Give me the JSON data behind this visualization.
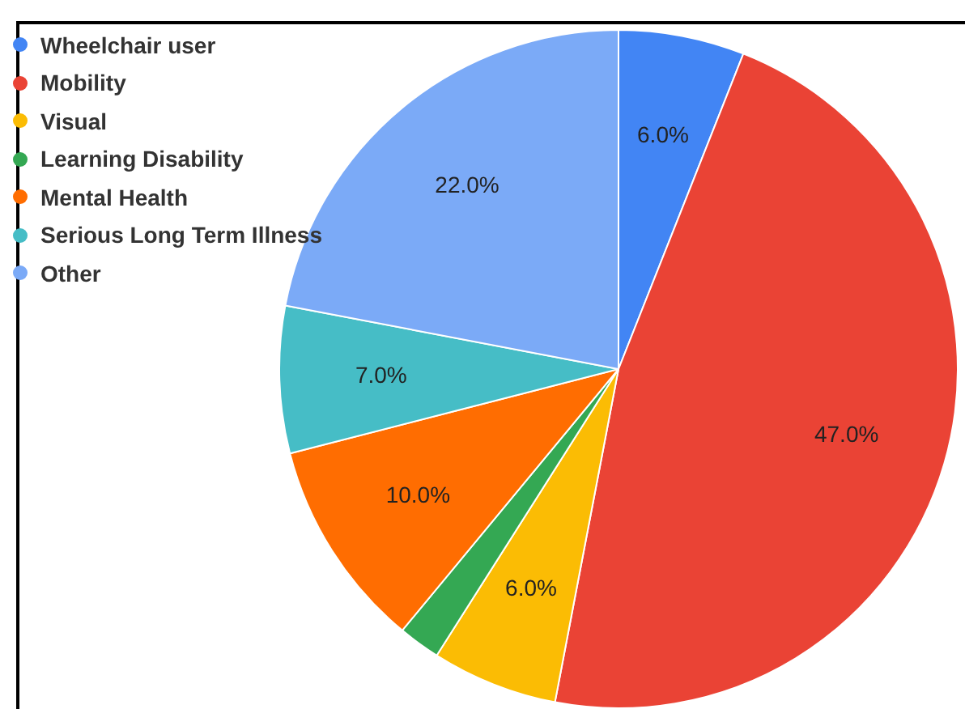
{
  "chart_data": {
    "type": "pie",
    "categories": [
      "Wheelchair user",
      "Mobility",
      "Visual",
      "Learning Disability",
      "Mental Health",
      "Serious Long Term Illness",
      "Other"
    ],
    "values": [
      6,
      47,
      6,
      2,
      10,
      7,
      22
    ],
    "colors": [
      "#4285f4",
      "#ea4335",
      "#fbbc04",
      "#34a853",
      "#ff6d01",
      "#46bdc6",
      "#7baaf7"
    ],
    "value_labels": [
      "6.0%",
      "47.0%",
      "6.0%",
      null,
      "10.0%",
      "7.0%",
      "22.0%"
    ],
    "legend": "top left"
  }
}
